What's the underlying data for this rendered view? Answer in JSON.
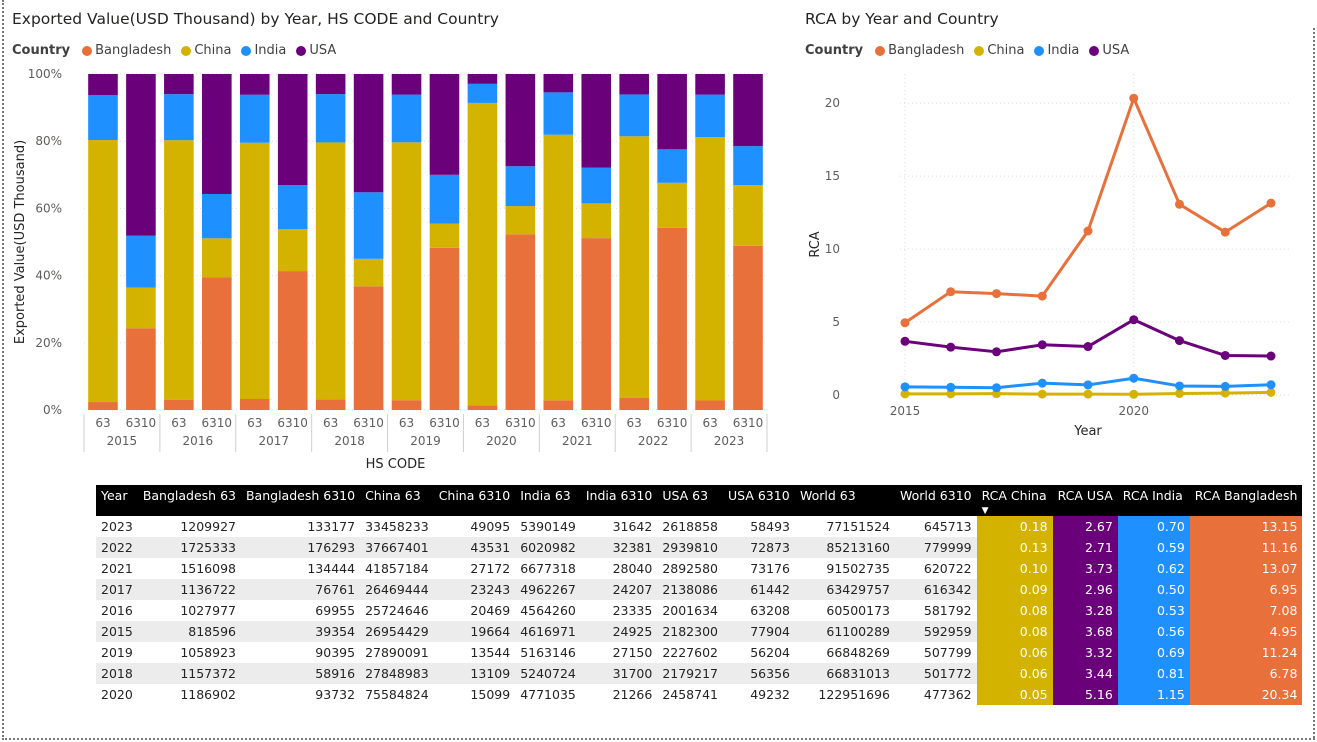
{
  "colors": {
    "Bangladesh": "#E8703A",
    "China": "#D4B300",
    "India": "#1E90FF",
    "USA": "#6B007B"
  },
  "left_chart": {
    "title": "Exported Value(USD Thousand) by Year, HS CODE and Country",
    "legend_title": "Country",
    "legend": [
      "Bangladesh",
      "China",
      "India",
      "USA"
    ]
  },
  "right_chart": {
    "title": "RCA by Year and Country",
    "legend_title": "Country",
    "legend": [
      "Bangladesh",
      "China",
      "India",
      "USA"
    ]
  },
  "chart_data": [
    {
      "type": "bar",
      "stacked": "100%",
      "title": "Exported Value(USD Thousand) by Year, HS CODE and Country",
      "xlabel": "HS CODE",
      "ylabel": "Exported Value(USD Thousand)",
      "y_ticks": [
        "0%",
        "20%",
        "40%",
        "60%",
        "80%",
        "100%"
      ],
      "ylim": [
        0,
        100
      ],
      "grid": true,
      "legend_position": "top-left",
      "categories": [
        {
          "year": "2015",
          "code": "63"
        },
        {
          "year": "2015",
          "code": "6310"
        },
        {
          "year": "2016",
          "code": "63"
        },
        {
          "year": "2016",
          "code": "6310"
        },
        {
          "year": "2017",
          "code": "63"
        },
        {
          "year": "2017",
          "code": "6310"
        },
        {
          "year": "2018",
          "code": "63"
        },
        {
          "year": "2018",
          "code": "6310"
        },
        {
          "year": "2019",
          "code": "63"
        },
        {
          "year": "2019",
          "code": "6310"
        },
        {
          "year": "2020",
          "code": "63"
        },
        {
          "year": "2020",
          "code": "6310"
        },
        {
          "year": "2021",
          "code": "63"
        },
        {
          "year": "2021",
          "code": "6310"
        },
        {
          "year": "2022",
          "code": "63"
        },
        {
          "year": "2022",
          "code": "6310"
        },
        {
          "year": "2023",
          "code": "63"
        },
        {
          "year": "2023",
          "code": "6310"
        }
      ],
      "series": [
        {
          "name": "Bangladesh",
          "values": [
            818596,
            39354,
            1027977,
            69955,
            1136722,
            76761,
            1157372,
            58916,
            1058923,
            90395,
            1186902,
            93732,
            1516098,
            134444,
            1725333,
            176293,
            1209927,
            133177
          ]
        },
        {
          "name": "China",
          "values": [
            26954429,
            19664,
            25724646,
            20469,
            26469444,
            23243,
            27848983,
            13109,
            27890091,
            13544,
            75584824,
            15099,
            41857184,
            27172,
            37667401,
            43531,
            33458233,
            49095
          ]
        },
        {
          "name": "India",
          "values": [
            4616971,
            24925,
            4564260,
            23335,
            4962267,
            24207,
            5240724,
            31700,
            5163146,
            27150,
            4771035,
            21266,
            6677318,
            28040,
            6020982,
            32381,
            5390149,
            31642
          ]
        },
        {
          "name": "USA",
          "values": [
            2182300,
            77904,
            2001634,
            63208,
            2138086,
            61442,
            2179217,
            56356,
            2227602,
            56204,
            2458741,
            49232,
            2892580,
            73176,
            2939810,
            72873,
            2618858,
            58493
          ]
        }
      ]
    },
    {
      "type": "line",
      "title": "RCA by Year and Country",
      "xlabel": "Year",
      "ylabel": "RCA",
      "x": [
        2015,
        2016,
        2017,
        2018,
        2019,
        2020,
        2021,
        2022,
        2023
      ],
      "x_ticks": [
        "2015",
        "2020"
      ],
      "y_ticks": [
        "0",
        "5",
        "10",
        "15",
        "20"
      ],
      "ylim": [
        0,
        22
      ],
      "grid": true,
      "legend_position": "top-left",
      "series": [
        {
          "name": "Bangladesh",
          "values": [
            4.95,
            7.08,
            6.95,
            6.78,
            11.24,
            20.34,
            13.07,
            11.16,
            13.15
          ]
        },
        {
          "name": "China",
          "values": [
            0.08,
            0.08,
            0.09,
            0.06,
            0.06,
            0.05,
            0.1,
            0.13,
            0.18
          ]
        },
        {
          "name": "India",
          "values": [
            0.56,
            0.53,
            0.5,
            0.81,
            0.69,
            1.15,
            0.62,
            0.59,
            0.7
          ]
        },
        {
          "name": "USA",
          "values": [
            3.68,
            3.28,
            2.96,
            3.44,
            3.32,
            5.16,
            3.73,
            2.71,
            2.67
          ]
        }
      ]
    }
  ],
  "table": {
    "columns": [
      "Year",
      "Bangladesh 63",
      "Bangladesh 6310",
      "China 63",
      "China 6310",
      "India 63",
      "India 6310",
      "USA 63",
      "USA 6310",
      "World 63",
      "World 6310",
      "RCA China",
      "RCA USA",
      "RCA India",
      "RCA Bangladesh"
    ],
    "sort_indicator": "▼",
    "rows": [
      [
        "2023",
        "1209927",
        "133177",
        "33458233",
        "49095",
        "5390149",
        "31642",
        "2618858",
        "58493",
        "77151524",
        "645713",
        "0.18",
        "2.67",
        "0.70",
        "13.15"
      ],
      [
        "2022",
        "1725333",
        "176293",
        "37667401",
        "43531",
        "6020982",
        "32381",
        "2939810",
        "72873",
        "85213160",
        "779999",
        "0.13",
        "2.71",
        "0.59",
        "11.16"
      ],
      [
        "2021",
        "1516098",
        "134444",
        "41857184",
        "27172",
        "6677318",
        "28040",
        "2892580",
        "73176",
        "91502735",
        "620722",
        "0.10",
        "3.73",
        "0.62",
        "13.07"
      ],
      [
        "2017",
        "1136722",
        "76761",
        "26469444",
        "23243",
        "4962267",
        "24207",
        "2138086",
        "61442",
        "63429757",
        "616342",
        "0.09",
        "2.96",
        "0.50",
        "6.95"
      ],
      [
        "2016",
        "1027977",
        "69955",
        "25724646",
        "20469",
        "4564260",
        "23335",
        "2001634",
        "63208",
        "60500173",
        "581792",
        "0.08",
        "3.28",
        "0.53",
        "7.08"
      ],
      [
        "2015",
        "818596",
        "39354",
        "26954429",
        "19664",
        "4616971",
        "24925",
        "2182300",
        "77904",
        "61100289",
        "592959",
        "0.08",
        "3.68",
        "0.56",
        "4.95"
      ],
      [
        "2019",
        "1058923",
        "90395",
        "27890091",
        "13544",
        "5163146",
        "27150",
        "2227602",
        "56204",
        "66848269",
        "507799",
        "0.06",
        "3.32",
        "0.69",
        "11.24"
      ],
      [
        "2018",
        "1157372",
        "58916",
        "27848983",
        "13109",
        "5240724",
        "31700",
        "2179217",
        "56356",
        "66831013",
        "501772",
        "0.06",
        "3.44",
        "0.81",
        "6.78"
      ],
      [
        "2020",
        "1186902",
        "93732",
        "75584824",
        "15099",
        "4771035",
        "21266",
        "2458741",
        "49232",
        "122951696",
        "477362",
        "0.05",
        "5.16",
        "1.15",
        "20.34"
      ]
    ]
  }
}
